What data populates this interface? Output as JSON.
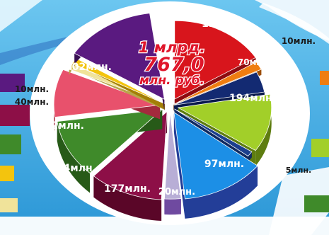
{
  "chart_data": {
    "type": "pie",
    "title_lines": [
      "1 млрд.",
      "767,0",
      "млн. руб."
    ],
    "slices": [
      {
        "label": "135млн.",
        "value": 135,
        "color": "#d8151c",
        "side": "#8e0c10"
      },
      {
        "label": "10млн.",
        "value": 10,
        "color": "#ef7d10",
        "side": "#9c4e06"
      },
      {
        "label": "70млн.",
        "value": 70,
        "color": "#132a72",
        "side": "#0a1a4c"
      },
      {
        "label": "194млн.",
        "value": 194,
        "color": "#a2cf29",
        "side": "#5e7d10"
      },
      {
        "label": "5млн.",
        "value": 5,
        "color": "#1c3f8e",
        "side": "#102a60"
      },
      {
        "label": "97млн.",
        "value": 97,
        "color": "#1c8fe6",
        "side": "#233e98"
      },
      {
        "label": "20млн.",
        "value": 20,
        "color": "#b8aed6",
        "side": "#6f4aa0"
      },
      {
        "label": "177млн.",
        "value": 177,
        "color": "#8d0f47",
        "side": "#5a0628"
      },
      {
        "label": "244млн.",
        "value": 244,
        "color": "#3f8a2a",
        "side": "#275a18"
      },
      {
        "label": "262млн.",
        "value": 262,
        "color": "#e8516c",
        "side": "#a32a3d"
      },
      {
        "label": "40млн.",
        "value": 40,
        "color": "#f0e39a",
        "side": "#b8a64a"
      },
      {
        "label": "10млн.",
        "value": 10,
        "color": "#f3c40e",
        "side": "#a37f06"
      },
      {
        "label": "502млн.",
        "value": 502,
        "color": "#5a1a80",
        "side": "#381052"
      }
    ]
  }
}
